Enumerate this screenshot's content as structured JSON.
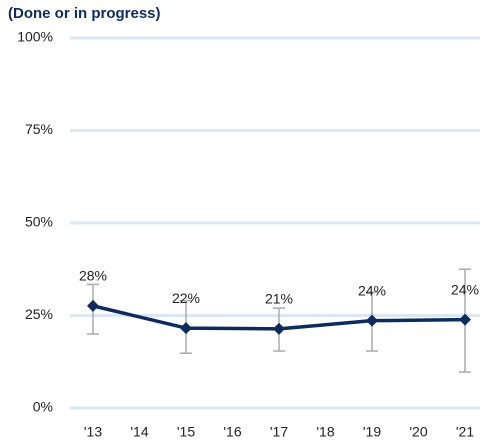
{
  "chart_data": {
    "type": "line",
    "title": "(Done or in progress)",
    "categories": [
      "'13",
      "'14",
      "'15",
      "'16",
      "'17",
      "'18",
      "'19",
      "'20",
      "'21"
    ],
    "series": [
      {
        "color": "#0d2b5e",
        "values": [
          27.6,
          null,
          21.6,
          null,
          21.4,
          null,
          23.6,
          null,
          23.9
        ],
        "value_labels": [
          "28%",
          null,
          "22%",
          null,
          "21%",
          null,
          "24%",
          null,
          "24%"
        ],
        "ci_low": [
          20,
          null,
          14.8,
          null,
          15.4,
          null,
          15.4,
          null,
          9.7
        ],
        "ci_high": [
          33.4,
          null,
          29,
          null,
          27,
          null,
          31.3,
          null,
          37.5
        ]
      }
    ],
    "error_color": "#aaaaaa",
    "ylim": [
      0,
      100
    ],
    "yticks": [
      {
        "value": 0,
        "label": "0%"
      },
      {
        "value": 25,
        "label": "25%"
      },
      {
        "value": 50,
        "label": "50%"
      },
      {
        "value": 75,
        "label": "75%"
      },
      {
        "value": 100,
        "label": "100%"
      }
    ],
    "grid": true,
    "grid_color": "#dce7f5"
  }
}
